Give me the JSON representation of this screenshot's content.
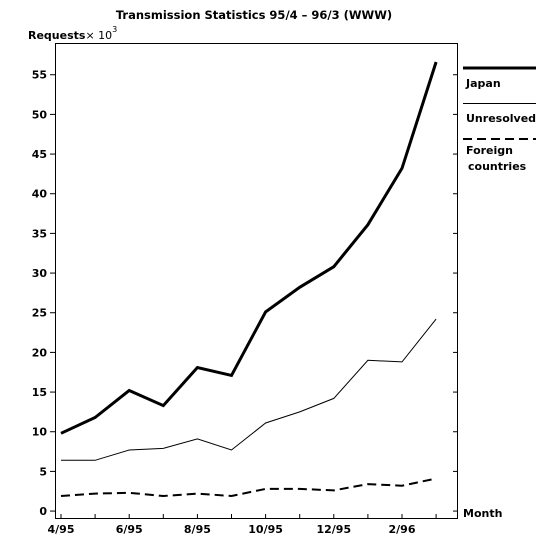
{
  "chart_data": {
    "type": "line",
    "title": "Transmission Statistics 95/4 – 96/3 (WWW)",
    "ylabel": "Requests",
    "ylabel_suffix": "× 10",
    "ylabel_exponent": "3",
    "xlabel": "Month",
    "ylim": [
      -1,
      59
    ],
    "y_ticks": [
      0,
      5,
      10,
      15,
      20,
      25,
      30,
      35,
      40,
      45,
      50,
      55
    ],
    "x_tick_labels": [
      "4/95",
      "6/95",
      "8/95",
      "10/95",
      "12/95",
      "2/96"
    ],
    "categories": [
      "4/95",
      "5/95",
      "6/95",
      "7/95",
      "8/95",
      "9/95",
      "10/95",
      "11/95",
      "12/95",
      "1/96",
      "2/96",
      "3/96"
    ],
    "series": [
      {
        "name": "Japan",
        "style": "solid-thick",
        "values": [
          9.8,
          11.8,
          15.2,
          13.3,
          18.1,
          17.1,
          25.1,
          28.2,
          30.8,
          36.1,
          43.2,
          56.6
        ]
      },
      {
        "name": "Unresolved",
        "style": "solid-thin",
        "values": [
          6.4,
          6.4,
          7.7,
          7.9,
          9.1,
          7.7,
          11.1,
          12.5,
          14.2,
          19.0,
          18.8,
          24.2
        ]
      },
      {
        "name": "Foreign countries",
        "display_lines": [
          "Foreign",
          "countries"
        ],
        "style": "dashed",
        "values": [
          1.9,
          2.2,
          2.3,
          1.9,
          2.2,
          1.9,
          2.8,
          2.8,
          2.6,
          3.4,
          3.2,
          4.1
        ]
      }
    ],
    "legend_position": "right",
    "grid": false
  }
}
